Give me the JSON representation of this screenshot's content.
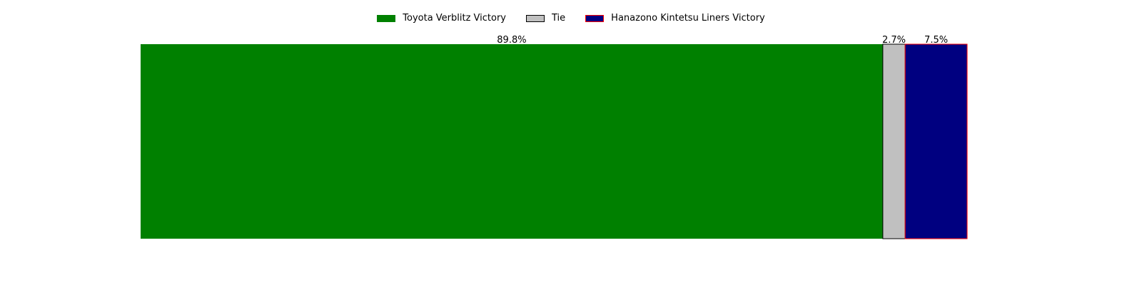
{
  "chart_data": {
    "type": "bar",
    "orientation": "horizontal",
    "stacked": true,
    "xlim": [
      0,
      100
    ],
    "grid": false,
    "axes_visible": false,
    "legend_position": "top-center",
    "series": [
      {
        "name": "Toyota Verblitz Victory",
        "value": 89.8,
        "label": "89.8%",
        "color": "#008000",
        "edge_color": "#008000"
      },
      {
        "name": "Tie",
        "value": 2.7,
        "label": "2.7%",
        "color": "#c0c0c0",
        "edge_color": "#000000"
      },
      {
        "name": "Hanazono Kintetsu Liners Victory",
        "value": 7.5,
        "label": "7.5%",
        "color": "#000080",
        "edge_color": "#ff0000"
      }
    ]
  }
}
